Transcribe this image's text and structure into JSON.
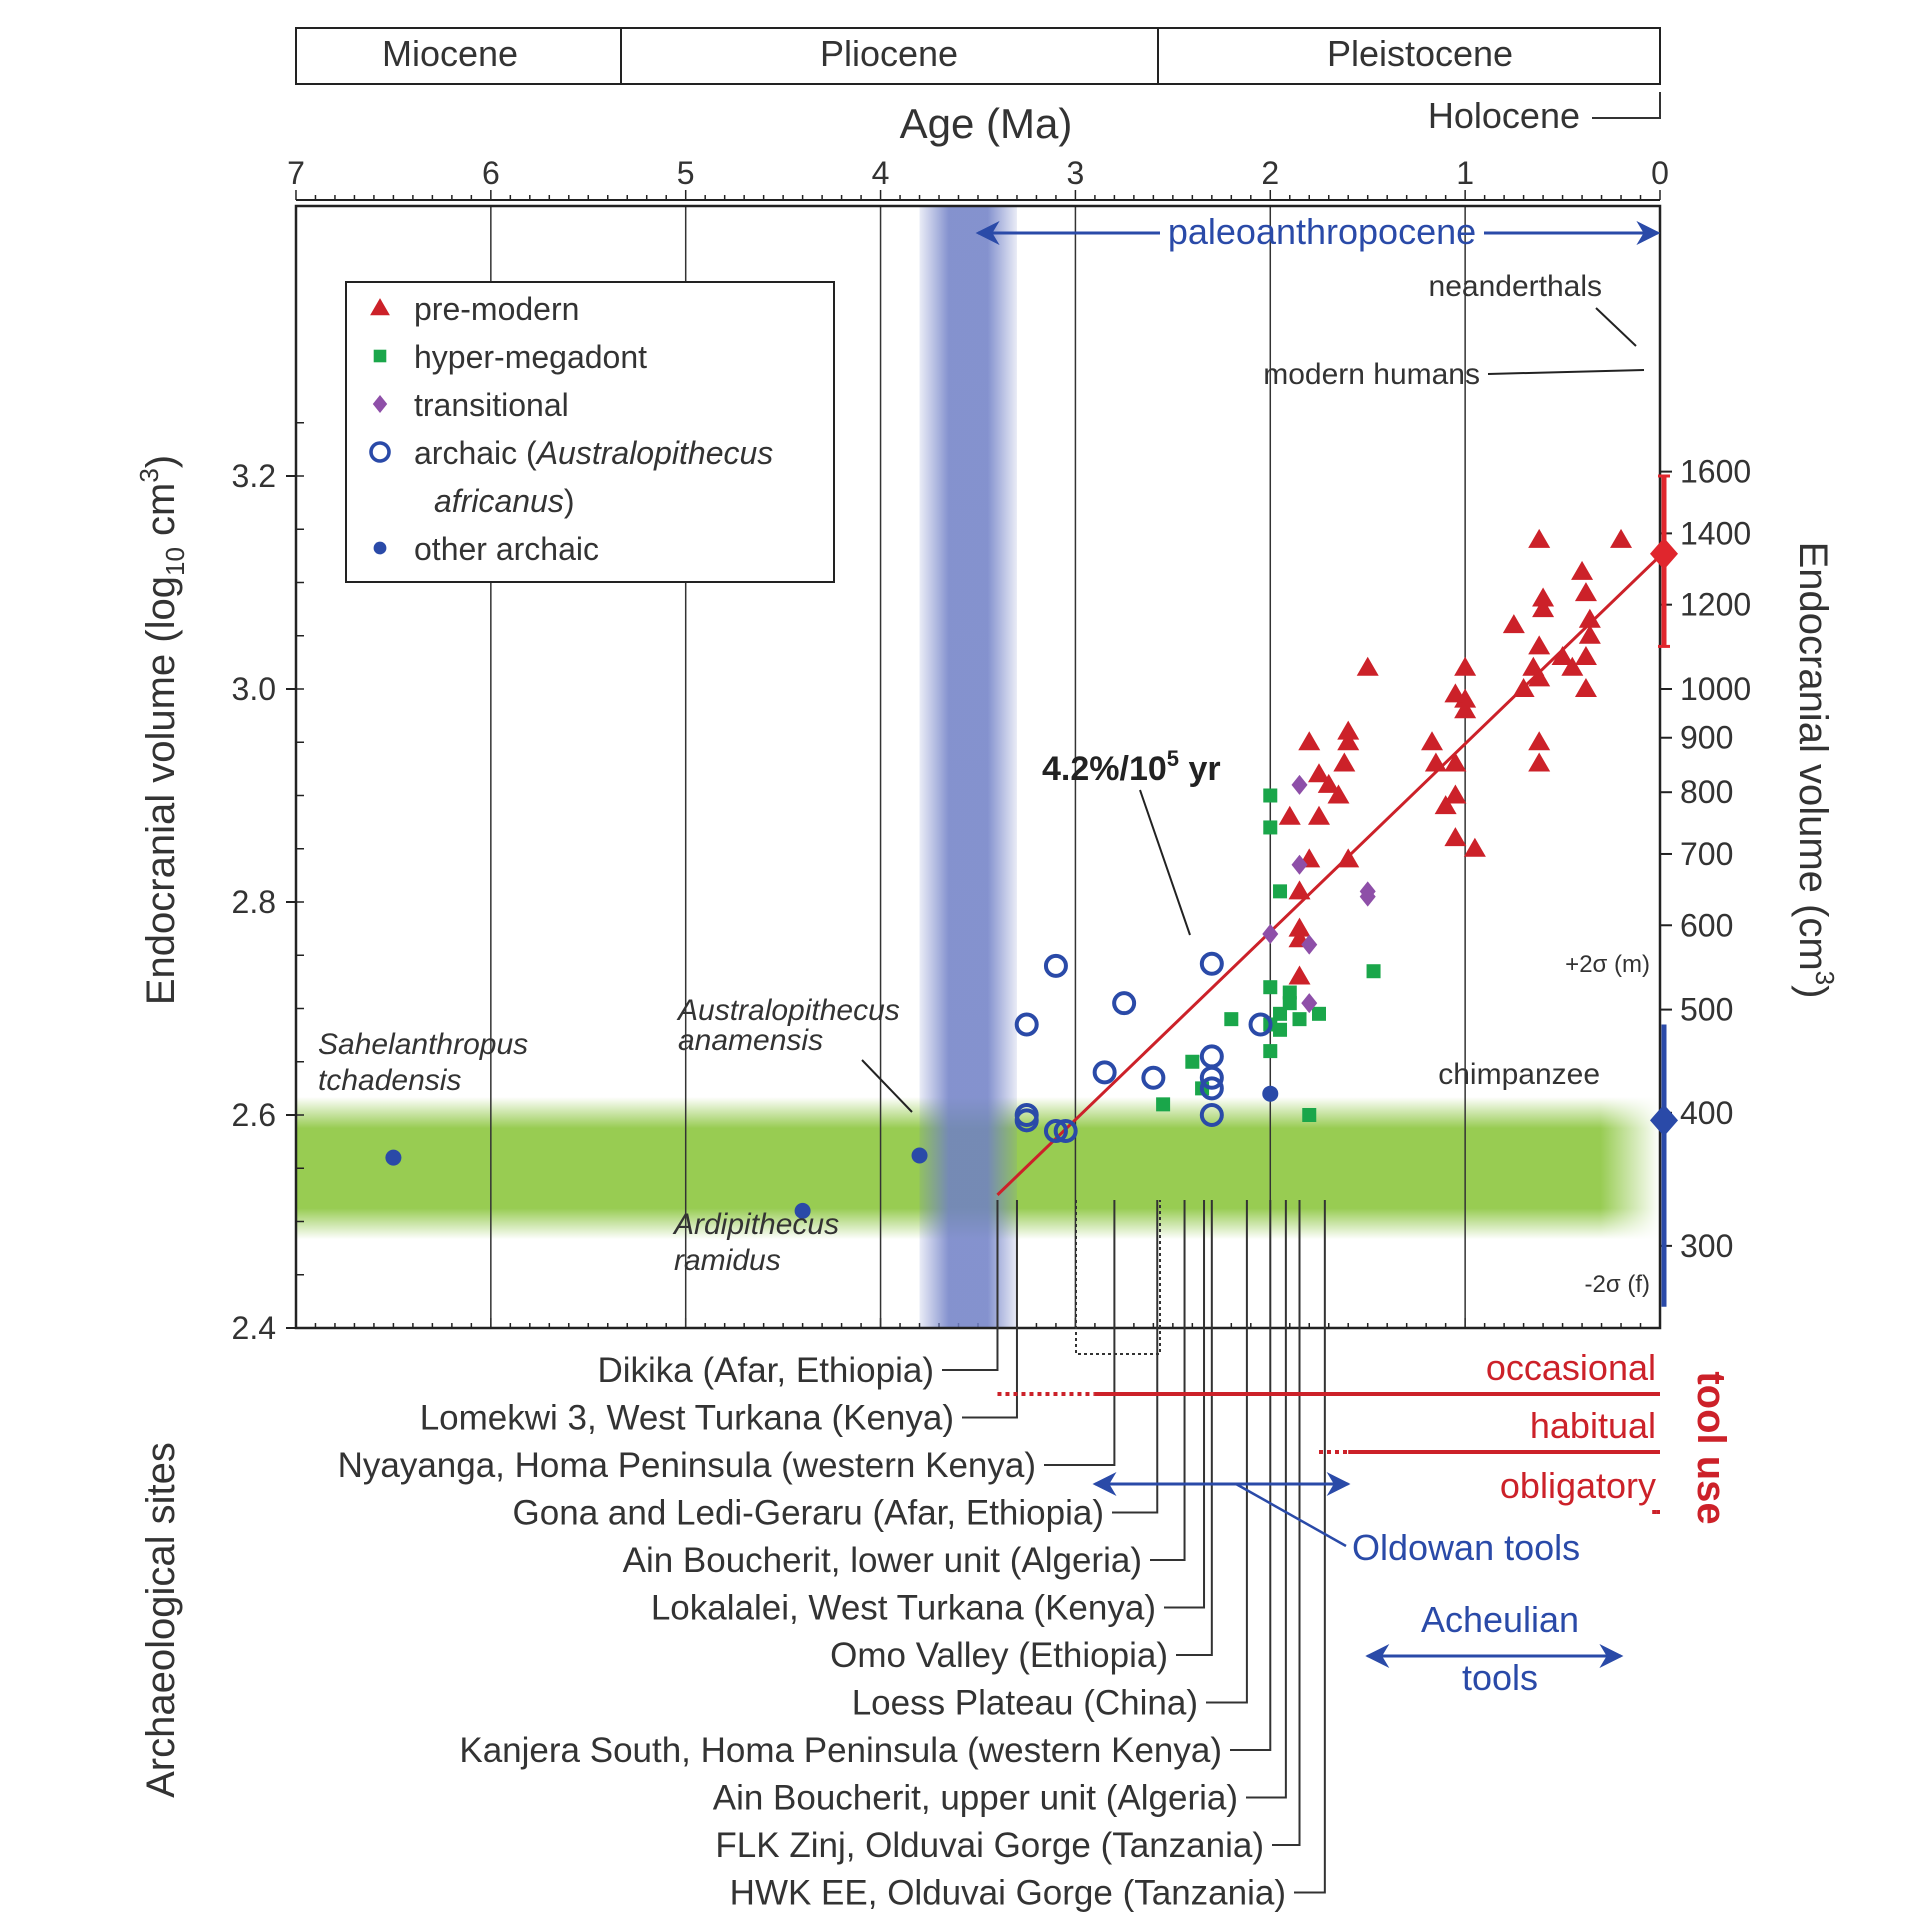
{
  "chart_data": {
    "type": "scatter",
    "epochs": [
      {
        "name": "Miocene",
        "from": 7.0,
        "to": 5.33
      },
      {
        "name": "Pliocene",
        "from": 5.33,
        "to": 2.58
      },
      {
        "name": "Pleistocene",
        "from": 2.58,
        "to": 0.0117
      }
    ],
    "holocene_label": "Holocene",
    "xlabel": "Age (Ma)",
    "x_ticks": [
      "7",
      "6",
      "5",
      "4",
      "3",
      "2",
      "1",
      "0"
    ],
    "xlim": [
      7,
      0
    ],
    "ylabel_left": "Endocranial volume (log",
    "ylabel_left_sub": "10",
    "ylabel_left_unit": " cm",
    "ylabel_left_sup": "3",
    "ylabel_left_close": ")",
    "y_ticks": [
      "2.4",
      "2.6",
      "2.8",
      "3.0",
      "3.2"
    ],
    "ylim": [
      2.4,
      3.25
    ],
    "ylabel_right": "Endocranial volume (cm",
    "ylabel_right_sup": "3",
    "ylabel_right_close": ")",
    "right_ticks": [
      "300",
      "400",
      "500",
      "600",
      "700",
      "800",
      "900",
      "1000",
      "1200",
      "1400",
      "1600"
    ],
    "paleoanthropocene": {
      "label": "paleoanthropocene",
      "from": 3.5,
      "to": 0
    },
    "blue_band": {
      "from": 3.8,
      "to": 3.3
    },
    "green_band_y": [
      2.5,
      2.6
    ],
    "trend": {
      "label": "4.2%/10",
      "label_sup": "5",
      "label_unit": " yr",
      "from": [
        3.4,
        2.525
      ],
      "to": [
        0,
        3.125
      ]
    },
    "legend": {
      "entries": [
        {
          "label": "pre-modern",
          "color": "#cc2129",
          "marker": "triangle"
        },
        {
          "label": "hyper-megadont",
          "color": "#1aa64a",
          "marker": "square"
        },
        {
          "label": "transitional",
          "color": "#8e4fa8",
          "marker": "diamond"
        },
        {
          "label": "archaic (",
          "label_italic": "Australopithecus",
          "label_cont": "africanus",
          "label_end": ")",
          "color": "#2a4aa8",
          "marker": "open-circle"
        },
        {
          "label": "other archaic",
          "color": "#2a4aa8",
          "marker": "dot"
        }
      ]
    },
    "annotations": {
      "neanderthals": "neanderthals",
      "modern_humans": "modern humans",
      "chimpanzee": "chimpanzee",
      "plus2sigma": "+2σ (m)",
      "minus2sigma": "-2σ (f)",
      "sahelanthropus": [
        "Sahelanthropus",
        "tchadensis"
      ],
      "anamensis": [
        "Australopithecus",
        "anamensis"
      ],
      "ramidus": [
        "Ardipithecus",
        "ramidus"
      ]
    },
    "ranges": {
      "modern_humans": {
        "x": 0,
        "y_low": 3.04,
        "y_high": 3.2,
        "marker_y": 3.127
      },
      "chimpanzee": {
        "x": 0,
        "y_low": 2.42,
        "y_high": 2.685,
        "marker_y": 2.595
      }
    },
    "series": [
      {
        "name": "pre-modern",
        "points": [
          [
            0.2,
            3.14
          ],
          [
            0.62,
            3.14
          ],
          [
            0.6,
            3.085
          ],
          [
            0.6,
            3.075
          ],
          [
            0.5,
            3.03
          ],
          [
            0.75,
            3.06
          ],
          [
            0.62,
            3.04
          ],
          [
            0.65,
            3.02
          ],
          [
            0.7,
            3.0
          ],
          [
            0.4,
            3.11
          ],
          [
            0.38,
            3.09
          ],
          [
            0.36,
            3.065
          ],
          [
            0.36,
            3.05
          ],
          [
            0.38,
            3.03
          ],
          [
            0.45,
            3.02
          ],
          [
            0.38,
            3.0
          ],
          [
            0.62,
            3.01
          ],
          [
            0.62,
            2.95
          ],
          [
            0.62,
            2.93
          ],
          [
            1.0,
            3.02
          ],
          [
            1.0,
            2.99
          ],
          [
            1.05,
            2.995
          ],
          [
            1.0,
            2.98
          ],
          [
            1.05,
            2.93
          ],
          [
            1.05,
            2.9
          ],
          [
            1.1,
            2.89
          ],
          [
            1.05,
            2.86
          ],
          [
            0.95,
            2.85
          ],
          [
            1.17,
            2.95
          ],
          [
            1.15,
            2.93
          ],
          [
            1.5,
            3.02
          ],
          [
            1.6,
            2.96
          ],
          [
            1.6,
            2.95
          ],
          [
            1.62,
            2.93
          ],
          [
            1.65,
            2.9
          ],
          [
            1.7,
            2.91
          ],
          [
            1.75,
            2.92
          ],
          [
            1.8,
            2.95
          ],
          [
            1.9,
            2.88
          ],
          [
            1.75,
            2.88
          ],
          [
            1.6,
            2.84
          ],
          [
            1.8,
            2.84
          ],
          [
            1.85,
            2.81
          ],
          [
            1.85,
            2.775
          ],
          [
            1.85,
            2.765
          ],
          [
            1.85,
            2.73
          ]
        ]
      },
      {
        "name": "hyper-megadont",
        "points": [
          [
            2.0,
            2.9
          ],
          [
            2.0,
            2.87
          ],
          [
            1.95,
            2.81
          ],
          [
            2.0,
            2.72
          ],
          [
            1.9,
            2.715
          ],
          [
            1.9,
            2.705
          ],
          [
            1.95,
            2.695
          ],
          [
            2.0,
            2.66
          ],
          [
            1.85,
            2.69
          ],
          [
            1.75,
            2.695
          ],
          [
            1.47,
            2.735
          ],
          [
            2.2,
            2.69
          ],
          [
            2.4,
            2.65
          ],
          [
            2.35,
            2.625
          ],
          [
            2.55,
            2.61
          ],
          [
            1.8,
            2.6
          ],
          [
            2.0,
            2.685
          ],
          [
            1.95,
            2.68
          ]
        ]
      },
      {
        "name": "transitional",
        "points": [
          [
            1.85,
            2.91
          ],
          [
            1.85,
            2.835
          ],
          [
            1.5,
            2.81
          ],
          [
            1.5,
            2.805
          ],
          [
            2.0,
            2.77
          ],
          [
            1.8,
            2.76
          ],
          [
            1.8,
            2.705
          ]
        ]
      },
      {
        "name": "archaic (Australopithecus africanus)",
        "points": [
          [
            3.1,
            2.74
          ],
          [
            2.3,
            2.742
          ],
          [
            2.75,
            2.705
          ],
          [
            3.25,
            2.685
          ],
          [
            2.05,
            2.685
          ],
          [
            2.3,
            2.655
          ],
          [
            2.85,
            2.64
          ],
          [
            2.6,
            2.635
          ],
          [
            2.3,
            2.635
          ],
          [
            2.3,
            2.625
          ],
          [
            2.3,
            2.6
          ],
          [
            3.25,
            2.6
          ],
          [
            3.25,
            2.595
          ],
          [
            3.1,
            2.585
          ],
          [
            3.05,
            2.585
          ]
        ]
      },
      {
        "name": "other archaic",
        "points": [
          [
            6.5,
            2.56
          ],
          [
            4.4,
            2.51
          ],
          [
            3.8,
            2.562
          ],
          [
            2.0,
            2.62
          ]
        ]
      }
    ],
    "sites": [
      {
        "label": "Dikika (Afar, Ethiopia)",
        "age": 3.4
      },
      {
        "label": "Lomekwi 3, West Turkana (Kenya)",
        "age": 3.3
      },
      {
        "label": "Nyayanga, Homa Peninsula (western Kenya)",
        "age": 2.8
      },
      {
        "label": "Gona and Ledi-Geraru (Afar, Ethiopia)",
        "age": 2.58
      },
      {
        "label": "Ain Boucherit, lower unit (Algeria)",
        "age": 2.44
      },
      {
        "label": "Lokalalei, West Turkana (Kenya)",
        "age": 2.34
      },
      {
        "label": "Omo Valley (Ethiopia)",
        "age": 2.3
      },
      {
        "label": "Loess Plateau (China)",
        "age": 2.12
      },
      {
        "label": "Kanjera South, Homa Peninsula (western Kenya)",
        "age": 2.0
      },
      {
        "label": "Ain Boucherit, upper unit (Algeria)",
        "age": 1.92
      },
      {
        "label": "FLK Zinj, Olduvai Gorge (Tanzania)",
        "age": 1.85
      },
      {
        "label": "HWK EE, Olduvai Gorge (Tanzania)",
        "age": 1.72
      }
    ],
    "sites_axis_label": "Archaeological sites",
    "tool_use": {
      "title": "tool use",
      "levels": [
        {
          "label": "occasional",
          "dotted_from": 3.4,
          "solid_from": 2.9
        },
        {
          "label": "habitual",
          "dotted_from": 1.75,
          "solid_from": 1.6
        },
        {
          "label": "obligatory",
          "dotted_from": 0.04,
          "solid_from": 0.02
        }
      ]
    },
    "oldowan": {
      "label": "Oldowan tools",
      "from": 2.9,
      "to": 1.6
    },
    "acheulian": {
      "label": [
        "Acheulian",
        "tools"
      ],
      "from": 1.5,
      "to": 0.2
    }
  }
}
